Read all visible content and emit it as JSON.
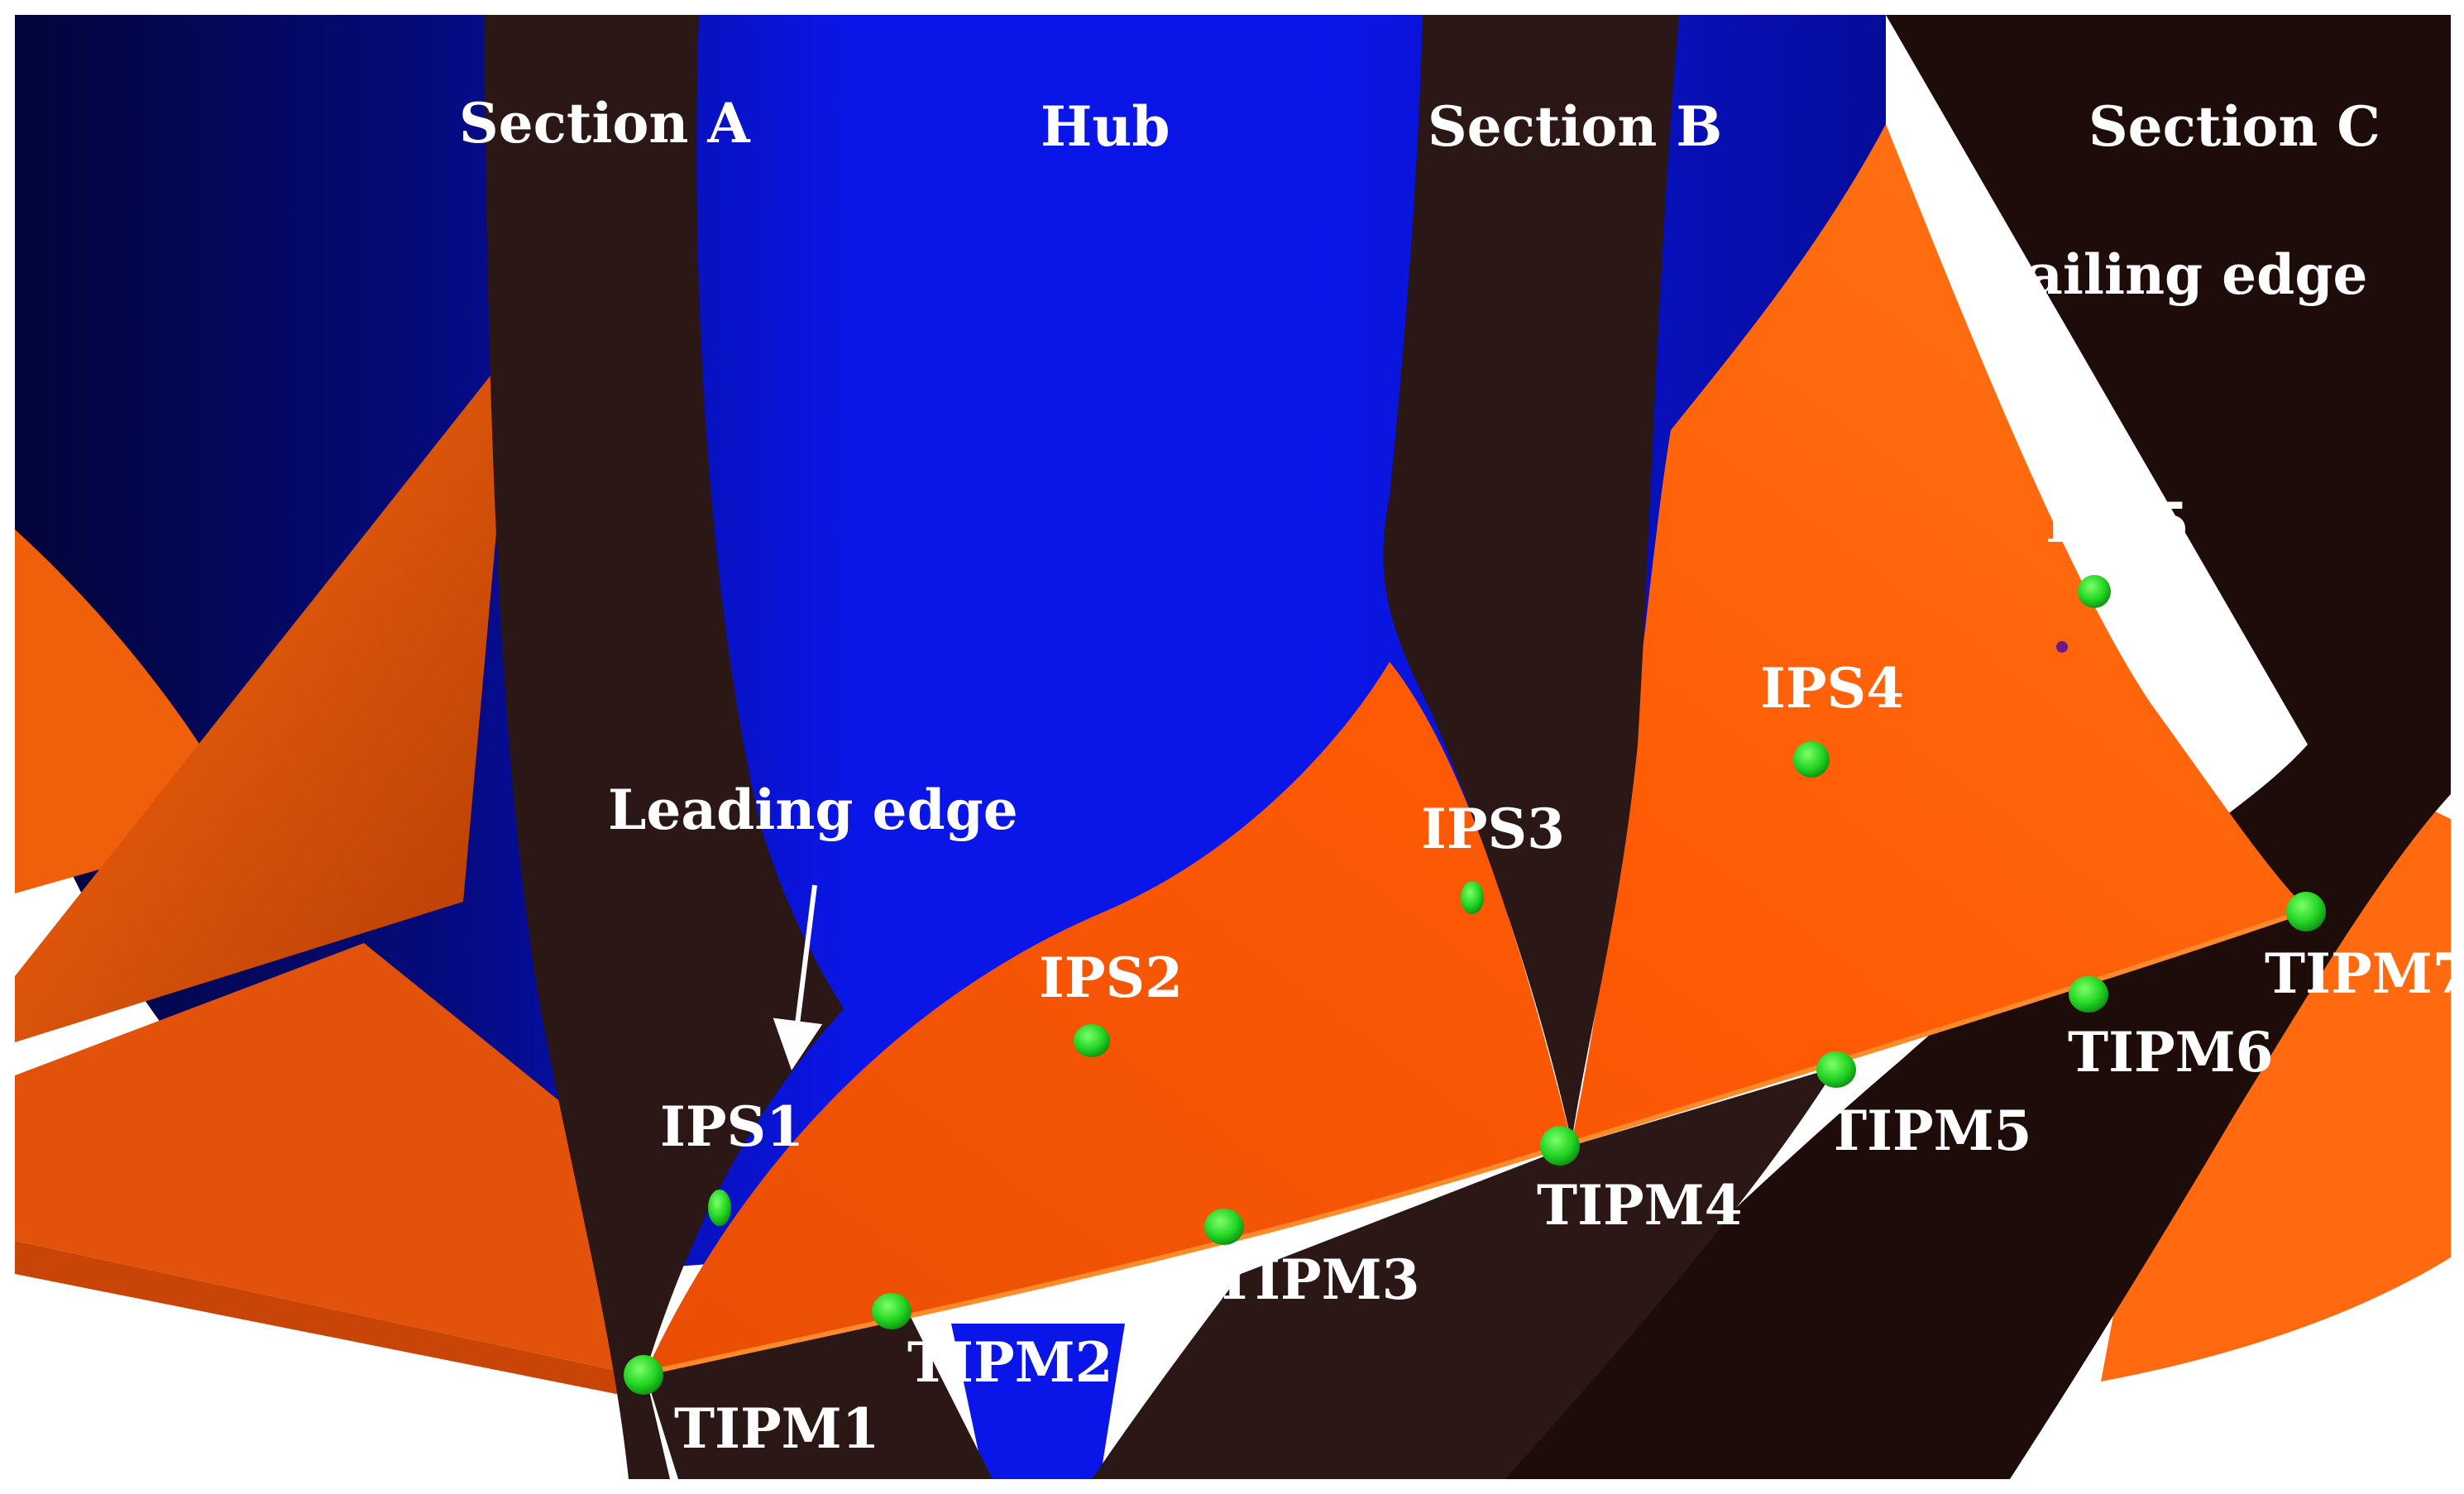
{
  "colors": {
    "hub": "#0a14e6",
    "hub_dark": "#03064a",
    "blade": "#ff5a06",
    "blade_light": "#ff7a1a",
    "section_band": "#2a1716",
    "section_band_dark": "#1e0c0a",
    "monitor_point": "#2cdc2c",
    "label": "#ffffff",
    "arrow": "#ffffff"
  },
  "labels": {
    "section_a": "Section A",
    "hub": "Hub",
    "section_b": "Section B",
    "section_c": "Section C",
    "trailing_edge": "Trailing edge",
    "leading_edge": "Leading edge"
  },
  "inner_points": [
    {
      "id": "IPS1",
      "label": "IPS1"
    },
    {
      "id": "IPS2",
      "label": "IPS2"
    },
    {
      "id": "IPS3",
      "label": "IPS3"
    },
    {
      "id": "IPS4",
      "label": "IPS4"
    },
    {
      "id": "IPS5",
      "label": "IPS5"
    }
  ],
  "tip_points": [
    {
      "id": "TIPM1",
      "label": "TIPM1"
    },
    {
      "id": "TIPM2",
      "label": "TIPM2"
    },
    {
      "id": "TIPM3",
      "label": "TIPM3"
    },
    {
      "id": "TIPM4",
      "label": "TIPM4"
    },
    {
      "id": "TIPM5",
      "label": "TIPM5"
    },
    {
      "id": "TIPM6",
      "label": "TIPM6"
    },
    {
      "id": "TIPM7",
      "label": "TIPM7"
    }
  ]
}
